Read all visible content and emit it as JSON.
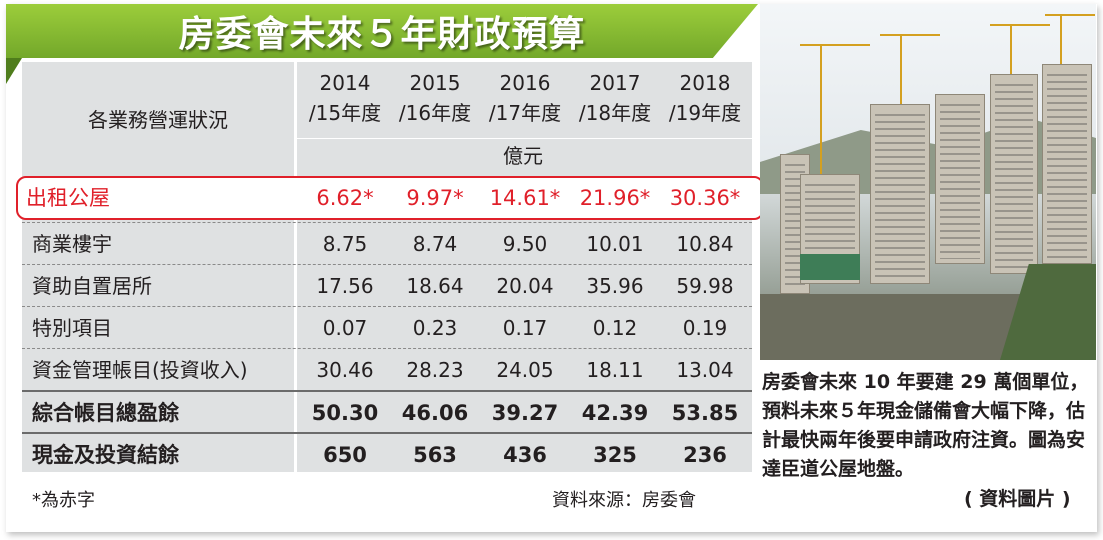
{
  "title": "房委會未來５年財政預算",
  "table": {
    "header_label": "各業務營運狀況",
    "years": [
      {
        "line1": "2014",
        "line2": "/15年度"
      },
      {
        "line1": "2015",
        "line2": "/16年度"
      },
      {
        "line1": "2016",
        "line2": "/17年度"
      },
      {
        "line1": "2017",
        "line2": "/18年度"
      },
      {
        "line1": "2018",
        "line2": "/19年度"
      }
    ],
    "unit": "億元",
    "highlight": {
      "label": "出租公屋",
      "values": [
        "6.62*",
        "9.97*",
        "14.61*",
        "21.96*",
        "30.36*"
      ]
    },
    "rows": [
      {
        "label": "商業樓宇",
        "values": [
          "8.75",
          "8.74",
          "9.50",
          "10.01",
          "10.84"
        ]
      },
      {
        "label": "資助自置居所",
        "values": [
          "17.56",
          "18.64",
          "20.04",
          "35.96",
          "59.98"
        ]
      },
      {
        "label": "特別項目",
        "values": [
          "0.07",
          "0.23",
          "0.17",
          "0.12",
          "0.19"
        ]
      },
      {
        "label": "資金管理帳目(投資收入)",
        "values": [
          "30.46",
          "28.23",
          "24.05",
          "18.11",
          "13.04"
        ]
      },
      {
        "label": "綜合帳目總盈餘",
        "values": [
          "50.30",
          "46.06",
          "39.27",
          "42.39",
          "53.85"
        ]
      },
      {
        "label": "現金及投資結餘",
        "values": [
          "650",
          "563",
          "436",
          "325",
          "236"
        ]
      }
    ]
  },
  "footnote": "*為赤字",
  "source": "資料來源：房委會",
  "caption": "房委會未來 10 年要建 29 萬個單位，預料未來５年現金儲備會大幅下降，估計最快兩年後要申請政府注資。圖為安達臣道公屋地盤。",
  "caption_source": "( 資料圖片 )",
  "colors": {
    "accent_green": "#8cc63f",
    "deficit_red": "#e0202a",
    "panel_grey": "#dfe1e2"
  }
}
